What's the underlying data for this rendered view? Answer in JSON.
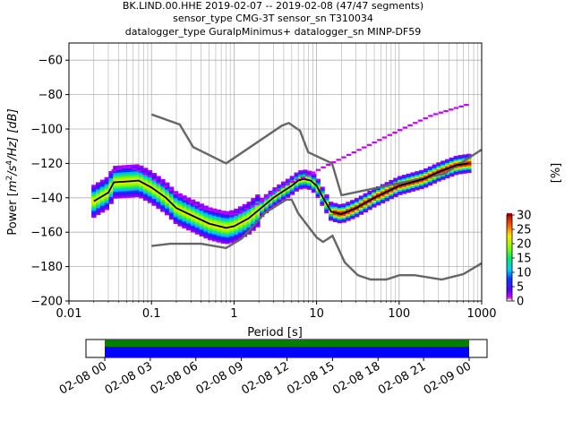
{
  "title_lines": [
    "BK.LIND.00.HHE   2019-02-07 -- 2019-02-08  (47/47 segments)",
    "sensor_type CMG-3T sensor_sn T310034",
    "datalogger_type GuralpMinimus+ datalogger_sn MINP-DF59"
  ],
  "chart_data": {
    "type": "heatmap",
    "title": "BK.LIND.00.HHE   2019-02-07 -- 2019-02-08  (47/47 segments)",
    "subtitle": "sensor_type CMG-3T sensor_sn T310034 / datalogger_type GuralpMinimus+ datalogger_sn MINP-DF59",
    "xlabel": "Period [s]",
    "ylabel": "Power [m²/s⁴/Hz] [dB]",
    "ylabel_parts": {
      "pre": "Power [",
      "m": "m",
      "exp2": "2",
      "mid": "/s",
      "exp4": "4",
      "post": "/Hz] [dB]"
    },
    "xscale": "log",
    "xlim": [
      0.01,
      1000
    ],
    "ylim": [
      -200,
      -50
    ],
    "xticks": [
      {
        "value": 0.01,
        "label": "0.01"
      },
      {
        "value": 0.1,
        "label": "0.1"
      },
      {
        "value": 1,
        "label": "1"
      },
      {
        "value": 10,
        "label": "10"
      },
      {
        "value": 100,
        "label": "100"
      },
      {
        "value": 1000,
        "label": "1000"
      }
    ],
    "yticks": [
      {
        "value": -60,
        "label": "−60"
      },
      {
        "value": -80,
        "label": "−80"
      },
      {
        "value": -100,
        "label": "−100"
      },
      {
        "value": -120,
        "label": "−120"
      },
      {
        "value": -140,
        "label": "−140"
      },
      {
        "value": -160,
        "label": "−160"
      },
      {
        "value": -180,
        "label": "−180"
      },
      {
        "value": -200,
        "label": "−200"
      }
    ],
    "grid": true,
    "colorbar": {
      "label": "[%]",
      "min": 0,
      "max": 30,
      "ticks": [
        {
          "value": 0,
          "label": "0"
        },
        {
          "value": 5,
          "label": "5"
        },
        {
          "value": 10,
          "label": "10"
        },
        {
          "value": 15,
          "label": "15"
        },
        {
          "value": 20,
          "label": "20"
        },
        {
          "value": 25,
          "label": "25"
        },
        {
          "value": 30,
          "label": "30"
        }
      ]
    },
    "noise_models": {
      "color": "#666666",
      "high_noise_model": [
        [
          0.1,
          -91.5
        ],
        [
          0.22,
          -97.4
        ],
        [
          0.32,
          -110.5
        ],
        [
          0.8,
          -120.0
        ],
        [
          3.8,
          -98.0
        ],
        [
          4.6,
          -96.5
        ],
        [
          6.3,
          -101.0
        ],
        [
          7.9,
          -113.5
        ],
        [
          15.4,
          -120.0
        ],
        [
          20.0,
          -138.5
        ],
        [
          354.8,
          -126.0
        ],
        [
          1000,
          -112.0
        ]
      ],
      "low_noise_model": [
        [
          0.1,
          -168.0
        ],
        [
          0.17,
          -166.7
        ],
        [
          0.4,
          -166.7
        ],
        [
          0.8,
          -169.2
        ],
        [
          1.24,
          -163.7
        ],
        [
          2.4,
          -148.6
        ],
        [
          4.3,
          -141.1
        ],
        [
          5.0,
          -141.1
        ],
        [
          6.0,
          -149.0
        ],
        [
          10.0,
          -163.0
        ],
        [
          12.0,
          -165.7
        ],
        [
          15.6,
          -162.1
        ],
        [
          21.9,
          -177.5
        ],
        [
          31.6,
          -185.0
        ],
        [
          45.0,
          -187.5
        ],
        [
          70.0,
          -187.5
        ],
        [
          101.0,
          -185.0
        ],
        [
          154.0,
          -185.0
        ],
        [
          328.0,
          -187.5
        ],
        [
          600.0,
          -184.4
        ],
        [
          1000,
          -178.0
        ]
      ]
    },
    "mean_curve": {
      "color": "#000000",
      "points": [
        [
          0.02,
          -142.0
        ],
        [
          0.03,
          -137.0
        ],
        [
          0.035,
          -131.0
        ],
        [
          0.05,
          -130.5
        ],
        [
          0.07,
          -130.0
        ],
        [
          0.1,
          -134.0
        ],
        [
          0.15,
          -140.0
        ],
        [
          0.2,
          -146.0
        ],
        [
          0.3,
          -150.0
        ],
        [
          0.5,
          -155.0
        ],
        [
          0.8,
          -157.5
        ],
        [
          1.0,
          -156.5
        ],
        [
          1.5,
          -152.0
        ],
        [
          2.0,
          -147.0
        ],
        [
          3.0,
          -140.0
        ],
        [
          4.0,
          -136.0
        ],
        [
          5.0,
          -133.0
        ],
        [
          6.0,
          -130.0
        ],
        [
          7.0,
          -129.0
        ],
        [
          8.5,
          -130.0
        ],
        [
          10.0,
          -133.0
        ],
        [
          12.0,
          -140.0
        ],
        [
          15.0,
          -148.0
        ],
        [
          20.0,
          -149.5
        ],
        [
          30.0,
          -146.0
        ],
        [
          50.0,
          -140.0
        ],
        [
          100.0,
          -133.0
        ],
        [
          200.0,
          -129.0
        ],
        [
          300.0,
          -125.0
        ],
        [
          500.0,
          -121.0
        ],
        [
          700.0,
          -120.0
        ]
      ]
    },
    "mode_offsets_db": [
      0,
      2,
      -2,
      4,
      -4,
      6,
      -6
    ],
    "outlier_branch": [
      [
        0.035,
        -124.0
      ],
      [
        0.05,
        -122.0
      ],
      [
        0.07,
        -124.0
      ],
      [
        0.1,
        -128.0
      ],
      [
        0.2,
        -138.0
      ],
      [
        0.4,
        -146.0
      ],
      [
        1.0,
        -150.0
      ],
      [
        2.0,
        -143.0
      ],
      [
        4.0,
        -133.0
      ],
      [
        7.0,
        -128.0
      ],
      [
        15.0,
        -120.0
      ],
      [
        30.0,
        -113.0
      ],
      [
        60.0,
        -106.0
      ],
      [
        120.0,
        -99.0
      ],
      [
        250.0,
        -92.0
      ],
      [
        650.0,
        -86.0
      ]
    ]
  },
  "timeline": {
    "xticks": [
      "02-08 00",
      "02-08 03",
      "02-08 06",
      "02-08 09",
      "02-08 12",
      "02-08 15",
      "02-08 18",
      "02-08 21",
      "02-09 00"
    ],
    "green_color": "#008000",
    "blue_color": "#0000ff"
  }
}
